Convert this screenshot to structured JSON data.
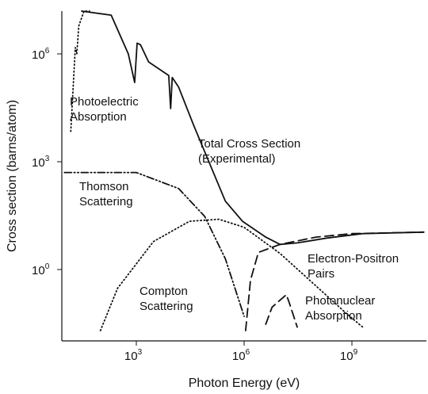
{
  "chart_data": {
    "type": "line",
    "title": "",
    "xlabel": "Photon Energy (eV)",
    "ylabel": "Cross section (barns/atom)",
    "x_scale": "log",
    "y_scale": "log",
    "xlim": [
      10,
      100000000000.0
    ],
    "ylim": [
      0.02,
      100000000.0
    ],
    "x_ticks": [
      {
        "base": "10",
        "exp": "3",
        "value": 1000
      },
      {
        "base": "10",
        "exp": "6",
        "value": 1000000
      },
      {
        "base": "10",
        "exp": "9",
        "value": 1000000000
      }
    ],
    "y_ticks": [
      {
        "base": "10",
        "exp": "0",
        "value": 1
      },
      {
        "base": "10",
        "exp": "3",
        "value": 1000
      },
      {
        "base": "10",
        "exp": "6",
        "value": 1000000
      }
    ],
    "grid": false,
    "legend": "none",
    "series": [
      {
        "style": "solid",
        "points": [
          [
            30,
            30000000.0
          ],
          [
            200,
            12000000.0
          ],
          [
            600,
            1000000.0
          ],
          [
            900,
            160000.0
          ],
          [
            1050,
            2000000.0
          ],
          [
            1300,
            1800000.0
          ],
          [
            2200,
            600000.0
          ],
          [
            8000,
            250000.0
          ],
          [
            9000,
            30000.0
          ],
          [
            10000,
            220000.0
          ],
          [
            15000,
            120000.0
          ],
          [
            40000,
            10000.0
          ],
          [
            300000,
            80
          ],
          [
            900000,
            22
          ],
          [
            4000000,
            8
          ],
          [
            10000000,
            5
          ],
          [
            30000000,
            5.5
          ],
          [
            200000000,
            7.5
          ],
          [
            2000000000,
            10
          ],
          [
            100000000000,
            11
          ]
        ]
      },
      {
        "style": "dotted",
        "points": [
          [
            15,
            7000.0
          ],
          [
            20,
            1500000.0
          ],
          [
            22,
            1000000.0
          ],
          [
            25,
            6000000.0
          ],
          [
            35,
            25000000.0
          ],
          [
            50,
            35000000.0
          ]
        ]
      },
      {
        "style": "dash-dot-dot",
        "points": [
          [
            10,
            500
          ],
          [
            1000,
            500
          ],
          [
            15000,
            180
          ],
          [
            80000,
            30
          ],
          [
            300000,
            2
          ],
          [
            1000000,
            0.05
          ]
        ]
      },
      {
        "style": "dotted",
        "points": [
          [
            100,
            0.02
          ],
          [
            300,
            0.3
          ],
          [
            3000,
            6
          ],
          [
            30000,
            22
          ],
          [
            200000,
            25
          ],
          [
            1000000,
            15
          ],
          [
            10000000,
            2.8
          ],
          [
            100000000,
            0.35
          ],
          [
            700000000,
            0.06
          ],
          [
            2000000000,
            0.025
          ]
        ]
      },
      {
        "style": "dashed",
        "points": [
          [
            1100000,
            0.02
          ],
          [
            1500000,
            0.5
          ],
          [
            2500000,
            3
          ],
          [
            10000000,
            5
          ],
          [
            100000000,
            8
          ],
          [
            1000000000,
            10
          ],
          [
            100000000000,
            11
          ]
        ]
      },
      {
        "style": "dashed",
        "points": [
          [
            4000000,
            0.03
          ],
          [
            6000000,
            0.09
          ],
          [
            15000000,
            0.2
          ],
          [
            18000000,
            0.12
          ],
          [
            30000000,
            0.025
          ]
        ]
      }
    ],
    "annotations": [
      {
        "lines": [
          "Photoelectric",
          "Absorption"
        ]
      },
      {
        "lines": [
          "Total Cross Section",
          "(Experimental)"
        ]
      },
      {
        "lines": [
          "Thomson",
          "Scattering"
        ]
      },
      {
        "lines": [
          "Electron-Positron",
          "Pairs"
        ]
      },
      {
        "lines": [
          "Compton",
          "Scattering"
        ]
      },
      {
        "lines": [
          "Photonuclear",
          "Absorption"
        ]
      }
    ]
  }
}
